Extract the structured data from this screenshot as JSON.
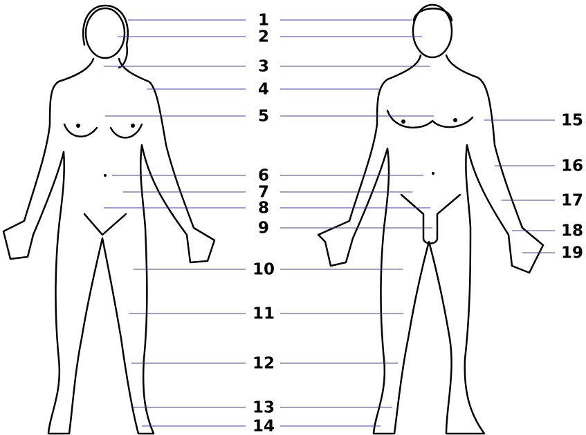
{
  "center_labels": [
    "1",
    "2",
    "3",
    "4",
    "5",
    "6",
    "7",
    "8",
    "9",
    "10",
    "11",
    "12",
    "13",
    "14"
  ],
  "right_labels": [
    "15",
    "16",
    "17",
    "18",
    "19"
  ]
}
